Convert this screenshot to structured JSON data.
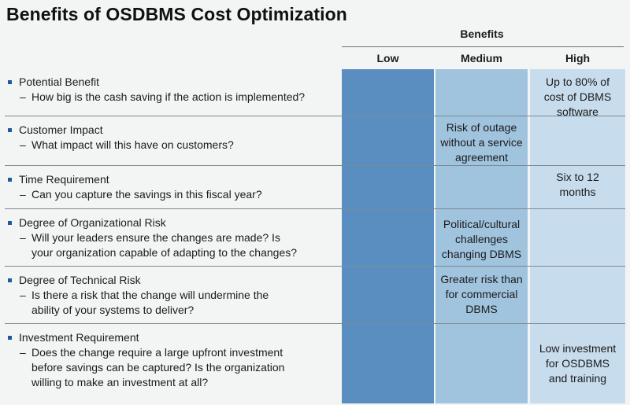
{
  "title": "Benefits of OSDBMS Cost Optimization",
  "benefits_header": "Benefits",
  "columns": [
    "Low",
    "Medium",
    "High"
  ],
  "colors": {
    "low": "#5a8ec0",
    "medium": "#a0c3de",
    "high": "#c7dcec",
    "bullet": "#1f5a9a"
  },
  "rows": [
    {
      "label": "Potential Benefit",
      "sub": [
        "How big is the cash saving if the action is implemented?"
      ],
      "low": "",
      "medium": "",
      "high": [
        "Up to 80% of",
        "cost of DBMS",
        "software"
      ]
    },
    {
      "label": "Customer Impact",
      "sub": [
        "What impact will this have on customers?"
      ],
      "low": "",
      "medium": [
        "Risk of outage",
        "without a service",
        "agreement"
      ],
      "high": ""
    },
    {
      "label": "Time Requirement",
      "sub": [
        "Can you capture the savings in this fiscal year?"
      ],
      "low": "",
      "medium": "",
      "high": [
        "Six to 12",
        "months"
      ]
    },
    {
      "label": "Degree of Organizational Risk",
      "sub": [
        "Will your leaders ensure the changes are made? Is",
        "your organization capable of adapting to the changes?"
      ],
      "low": "",
      "medium": [
        "Political/cultural",
        "challenges",
        "changing DBMS"
      ],
      "high": ""
    },
    {
      "label": "Degree of Technical Risk",
      "sub": [
        "Is there a risk that the change will undermine the",
        "ability of your systems to deliver?"
      ],
      "low": "",
      "medium": [
        "Greater risk than",
        "for commercial",
        "DBMS"
      ],
      "high": ""
    },
    {
      "label": "Investment Requirement",
      "sub": [
        "Does the change require a large upfront investment",
        "before savings can be captured? Is the organization",
        "willing to make an investment at all?"
      ],
      "low": "",
      "medium": "",
      "high": [
        "Low investment",
        "for OSDBMS",
        "and training"
      ]
    }
  ]
}
